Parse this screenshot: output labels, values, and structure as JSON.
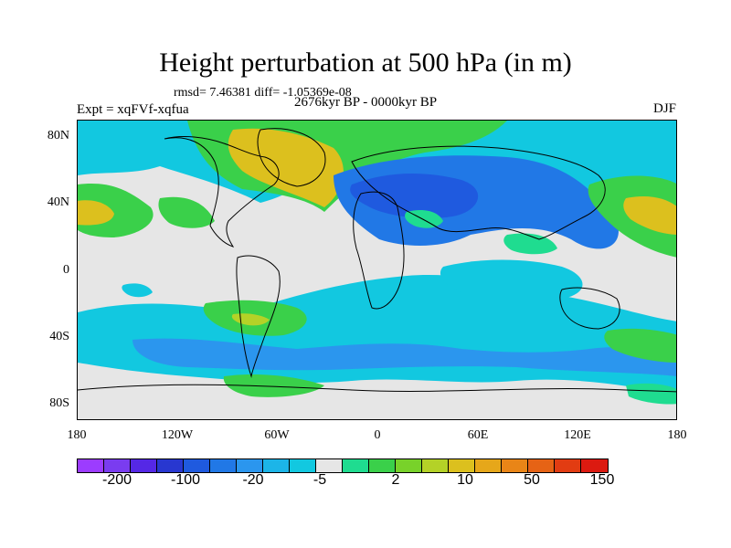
{
  "header": {
    "title": "Height perturbation at 500 hPa (in m)",
    "rmsd": "rmsd= 7.46381 diff= -1.05369e-08",
    "expt": "Expt = xqFVf-xqfua",
    "period": "2676kyr BP - 0000kyr BP",
    "season": "DJF"
  },
  "axes": {
    "y_labels": [
      "80N",
      "40N",
      "0",
      "40S",
      "80S"
    ],
    "x_labels": [
      "180",
      "120W",
      "60W",
      "0",
      "60E",
      "120E",
      "180"
    ]
  },
  "colorbar": {
    "labels": [
      "-200",
      "-100",
      "-20",
      "-5",
      "2",
      "10",
      "50",
      "150"
    ],
    "colors": [
      "#9c3cff",
      "#7a3cf0",
      "#5528e6",
      "#2837d0",
      "#1f5adf",
      "#2178e6",
      "#2b96ee",
      "#1cb5e8",
      "#12c8e0",
      "#e6e6e6",
      "#1fdc90",
      "#3ad04a",
      "#78d22a",
      "#b4d227",
      "#dcc01e",
      "#e6a71a",
      "#e98517",
      "#e66315",
      "#e23c12",
      "#dc1a10"
    ]
  },
  "map": {
    "background": "#e6e6e6",
    "field_colors": {
      "light_blue": "#12c8e0",
      "mid_blue": "#2b96ee",
      "blue": "#2178e6",
      "deep_blue": "#1f5adf",
      "teal_green": "#1fdc90",
      "green": "#3ad04a",
      "yellow_green": "#b4d227",
      "olive": "#dcc01e"
    }
  }
}
